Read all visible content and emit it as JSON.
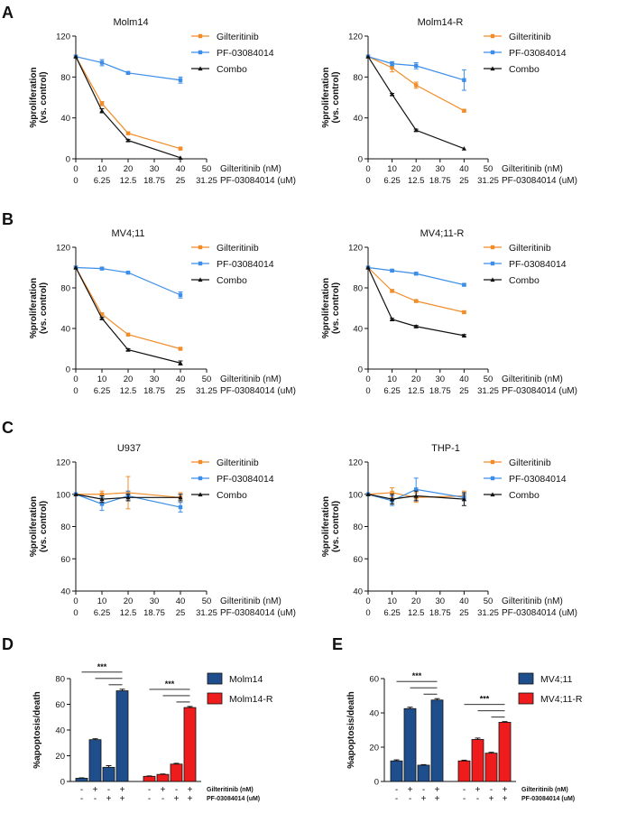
{
  "panels": [
    "A",
    "B",
    "C",
    "D",
    "E"
  ],
  "colors": {
    "gilteritinib": "#f28c28",
    "pf": "#3c8ee8",
    "combo": "#111111",
    "blue_bar": "#1f4e8c",
    "red_bar": "#ee1c1c"
  },
  "chart_data": [
    {
      "type": "line",
      "panel": "A",
      "title": "Molm14",
      "ylabel": [
        "%proliferation",
        "(vs. control)"
      ],
      "ylim": [
        0,
        120
      ],
      "yticks": [
        "0",
        "40",
        "80",
        "120"
      ],
      "xlim": [
        0,
        50
      ],
      "x_axis_labels": [
        "Gilteritinib (nM)",
        "PF-03084014 (uM)"
      ],
      "xticks_nM": [
        "0",
        "10",
        "20",
        "30",
        "40",
        "50"
      ],
      "xticks_uM": [
        "0",
        "6.25",
        "12.5",
        "18.75",
        "25",
        "31.25"
      ],
      "series": [
        {
          "name": "Gilteritinib",
          "color": "#f28c28",
          "x": [
            0,
            10,
            20,
            40
          ],
          "y": [
            100,
            54,
            25,
            10
          ],
          "err": [
            0,
            2,
            1,
            1
          ]
        },
        {
          "name": "PF-03084014",
          "color": "#3c8ee8",
          "x": [
            0,
            10,
            20,
            40
          ],
          "y": [
            100,
            94,
            84,
            77
          ],
          "err": [
            0,
            3,
            1,
            3
          ]
        },
        {
          "name": "Combo",
          "color": "#111111",
          "x": [
            0,
            10,
            20,
            40
          ],
          "y": [
            100,
            47,
            18,
            1
          ],
          "err": [
            0,
            2,
            1,
            0
          ]
        }
      ]
    },
    {
      "type": "line",
      "panel": "A",
      "title": "Molm14-R",
      "ylabel": [
        "%proliferation",
        "(vs. control)"
      ],
      "ylim": [
        0,
        120
      ],
      "yticks": [
        "0",
        "40",
        "80",
        "120"
      ],
      "xlim": [
        0,
        50
      ],
      "x_axis_labels": [
        "Gilteritinib (nM)",
        "PF-03084014 (uM)"
      ],
      "xticks_nM": [
        "0",
        "10",
        "20",
        "30",
        "40",
        "50"
      ],
      "xticks_uM": [
        "0",
        "6.25",
        "12.5",
        "18.75",
        "25",
        "31.25"
      ],
      "series": [
        {
          "name": "Gilteritinib",
          "color": "#f28c28",
          "x": [
            0,
            10,
            20,
            40
          ],
          "y": [
            100,
            89,
            72,
            47
          ],
          "err": [
            0,
            4,
            3,
            1
          ]
        },
        {
          "name": "PF-03084014",
          "color": "#3c8ee8",
          "x": [
            0,
            10,
            20,
            40
          ],
          "y": [
            100,
            93,
            91,
            77
          ],
          "err": [
            0,
            2,
            3,
            10
          ]
        },
        {
          "name": "Combo",
          "color": "#111111",
          "x": [
            0,
            10,
            20,
            40
          ],
          "y": [
            100,
            63,
            28,
            10
          ],
          "err": [
            0,
            1,
            1,
            0
          ]
        }
      ]
    },
    {
      "type": "line",
      "panel": "B",
      "title": "MV4;11",
      "ylabel": [
        "%proliferation",
        "(vs. control)"
      ],
      "ylim": [
        0,
        120
      ],
      "yticks": [
        "0",
        "40",
        "80",
        "120"
      ],
      "xlim": [
        0,
        50
      ],
      "x_axis_labels": [
        "Gilteritinib (nM)",
        "PF-03084014 (uM)"
      ],
      "xticks_nM": [
        "0",
        "10",
        "20",
        "30",
        "40",
        "50"
      ],
      "xticks_uM": [
        "0",
        "6.25",
        "12.5",
        "18.75",
        "25",
        "31.25"
      ],
      "series": [
        {
          "name": "Gilteritinib",
          "color": "#f28c28",
          "x": [
            0,
            10,
            20,
            40
          ],
          "y": [
            100,
            54,
            34,
            20
          ],
          "err": [
            0,
            1,
            1,
            1
          ]
        },
        {
          "name": "PF-03084014",
          "color": "#3c8ee8",
          "x": [
            0,
            10,
            20,
            40
          ],
          "y": [
            100,
            99,
            95,
            73
          ],
          "err": [
            0,
            1,
            1,
            3
          ]
        },
        {
          "name": "Combo",
          "color": "#111111",
          "x": [
            0,
            10,
            20,
            40
          ],
          "y": [
            100,
            50,
            19,
            6
          ],
          "err": [
            0,
            1,
            1,
            2
          ]
        }
      ]
    },
    {
      "type": "line",
      "panel": "B",
      "title": "MV4;11-R",
      "ylabel": [
        "%proliferation",
        "(vs. control)"
      ],
      "ylim": [
        0,
        120
      ],
      "yticks": [
        "0",
        "40",
        "80",
        "120"
      ],
      "xlim": [
        0,
        50
      ],
      "x_axis_labels": [
        "Gilteritinib (nM)",
        "PF-03084014 (uM)"
      ],
      "xticks_nM": [
        "0",
        "10",
        "20",
        "30",
        "40",
        "50"
      ],
      "xticks_uM": [
        "0",
        "6.25",
        "12.5",
        "18.75",
        "25",
        "31.25"
      ],
      "series": [
        {
          "name": "Gilteritinib",
          "color": "#f28c28",
          "x": [
            0,
            10,
            20,
            40
          ],
          "y": [
            100,
            77,
            67,
            56
          ],
          "err": [
            0,
            1,
            1,
            1
          ]
        },
        {
          "name": "PF-03084014",
          "color": "#3c8ee8",
          "x": [
            0,
            10,
            20,
            40
          ],
          "y": [
            100,
            97,
            94,
            83
          ],
          "err": [
            0,
            1,
            1,
            1
          ]
        },
        {
          "name": "Combo",
          "color": "#111111",
          "x": [
            0,
            10,
            20,
            40
          ],
          "y": [
            100,
            49,
            42,
            33
          ],
          "err": [
            0,
            1,
            1,
            1
          ]
        }
      ]
    },
    {
      "type": "line",
      "panel": "C",
      "title": "U937",
      "ylabel": [
        "%proliferation",
        "(vs. control)"
      ],
      "ylim": [
        40,
        120
      ],
      "yticks": [
        "40",
        "60",
        "80",
        "100",
        "120"
      ],
      "xlim": [
        0,
        50
      ],
      "x_axis_labels": [
        "Gilteritinib (nM)",
        "PF-03084014 (uM)"
      ],
      "xticks_nM": [
        "0",
        "10",
        "20",
        "30",
        "40",
        "50"
      ],
      "xticks_uM": [
        "0",
        "6.25",
        "12.5",
        "18.75",
        "25",
        "31.25"
      ],
      "series": [
        {
          "name": "Gilteritinib",
          "color": "#f28c28",
          "x": [
            0,
            10,
            20,
            40
          ],
          "y": [
            100,
            100,
            101,
            98
          ],
          "err": [
            0,
            2,
            10,
            3
          ]
        },
        {
          "name": "PF-03084014",
          "color": "#3c8ee8",
          "x": [
            0,
            10,
            20,
            40
          ],
          "y": [
            100,
            94,
            99,
            92
          ],
          "err": [
            0,
            4,
            3,
            3
          ]
        },
        {
          "name": "Combo",
          "color": "#111111",
          "x": [
            0,
            10,
            20,
            40
          ],
          "y": [
            100,
            97,
            98,
            98
          ],
          "err": [
            0,
            2,
            2,
            2
          ]
        }
      ]
    },
    {
      "type": "line",
      "panel": "C",
      "title": "THP-1",
      "ylabel": [
        "%proliferation",
        "(vs. control)"
      ],
      "ylim": [
        40,
        120
      ],
      "yticks": [
        "40",
        "60",
        "80",
        "100",
        "120"
      ],
      "xlim": [
        0,
        50
      ],
      "x_axis_labels": [
        "Gilteritinib (nM)",
        "PF-03084014 (uM)"
      ],
      "xticks_nM": [
        "0",
        "10",
        "20",
        "30",
        "40",
        "50"
      ],
      "xticks_uM": [
        "0",
        "6.25",
        "12.5",
        "18.75",
        "25",
        "31.25"
      ],
      "series": [
        {
          "name": "Gilteritinib",
          "color": "#f28c28",
          "x": [
            0,
            10,
            20,
            40
          ],
          "y": [
            100,
            101,
            98,
            99
          ],
          "err": [
            0,
            3,
            3,
            3
          ]
        },
        {
          "name": "PF-03084014",
          "color": "#3c8ee8",
          "x": [
            0,
            10,
            20,
            40
          ],
          "y": [
            100,
            96,
            103,
            98
          ],
          "err": [
            0,
            3,
            7,
            2
          ]
        },
        {
          "name": "Combo",
          "color": "#111111",
          "x": [
            0,
            10,
            20,
            40
          ],
          "y": [
            100,
            97,
            99,
            97
          ],
          "err": [
            0,
            3,
            3,
            4
          ]
        }
      ]
    },
    {
      "type": "bar",
      "panel": "D",
      "ylabel": "%apoptosis/death",
      "ylim": [
        0,
        80
      ],
      "yticks": [
        "0",
        "20",
        "40",
        "60",
        "80"
      ],
      "treatment_rows": [
        {
          "label": "Gilteritinib (nM)",
          "signs": [
            "-",
            "+",
            "-",
            "+",
            "-",
            "+",
            "-",
            "+"
          ]
        },
        {
          "label": "PF-03084014 (uM)",
          "signs": [
            "-",
            "-",
            "+",
            "+",
            "-",
            "-",
            "+",
            "+"
          ]
        }
      ],
      "significance": "***",
      "series": [
        {
          "name": "Molm14",
          "color": "#1f4e8c",
          "values": [
            2.5,
            32.5,
            11,
            70.5
          ],
          "err": [
            0.3,
            0.7,
            1.3,
            1.2
          ]
        },
        {
          "name": "Molm14-R",
          "color": "#ee1c1c",
          "values": [
            4,
            5.5,
            13.5,
            57.5
          ],
          "err": [
            0.3,
            0.3,
            0.6,
            0.8
          ]
        }
      ]
    },
    {
      "type": "bar",
      "panel": "E",
      "ylabel": "%apoptosis/death",
      "ylim": [
        0,
        60
      ],
      "yticks": [
        "0",
        "20",
        "40",
        "60"
      ],
      "treatment_rows": [
        {
          "label": "Gilteritinib (nM)",
          "signs": [
            "-",
            "+",
            "-",
            "+",
            "-",
            "+",
            "-",
            "+"
          ]
        },
        {
          "label": "PF-03084014 (uM)",
          "signs": [
            "-",
            "-",
            "+",
            "+",
            "-",
            "-",
            "+",
            "+"
          ]
        }
      ],
      "significance": "***",
      "series": [
        {
          "name": "MV4;11",
          "color": "#1f4e8c",
          "values": [
            12,
            42.5,
            9.5,
            47.5
          ],
          "err": [
            0.6,
            0.8,
            0.3,
            0.8
          ]
        },
        {
          "name": "MV4;11-R",
          "color": "#ee1c1c",
          "values": [
            12,
            24.5,
            16.5,
            34.5
          ],
          "err": [
            0.4,
            0.8,
            0.5,
            0.4
          ]
        }
      ]
    }
  ]
}
